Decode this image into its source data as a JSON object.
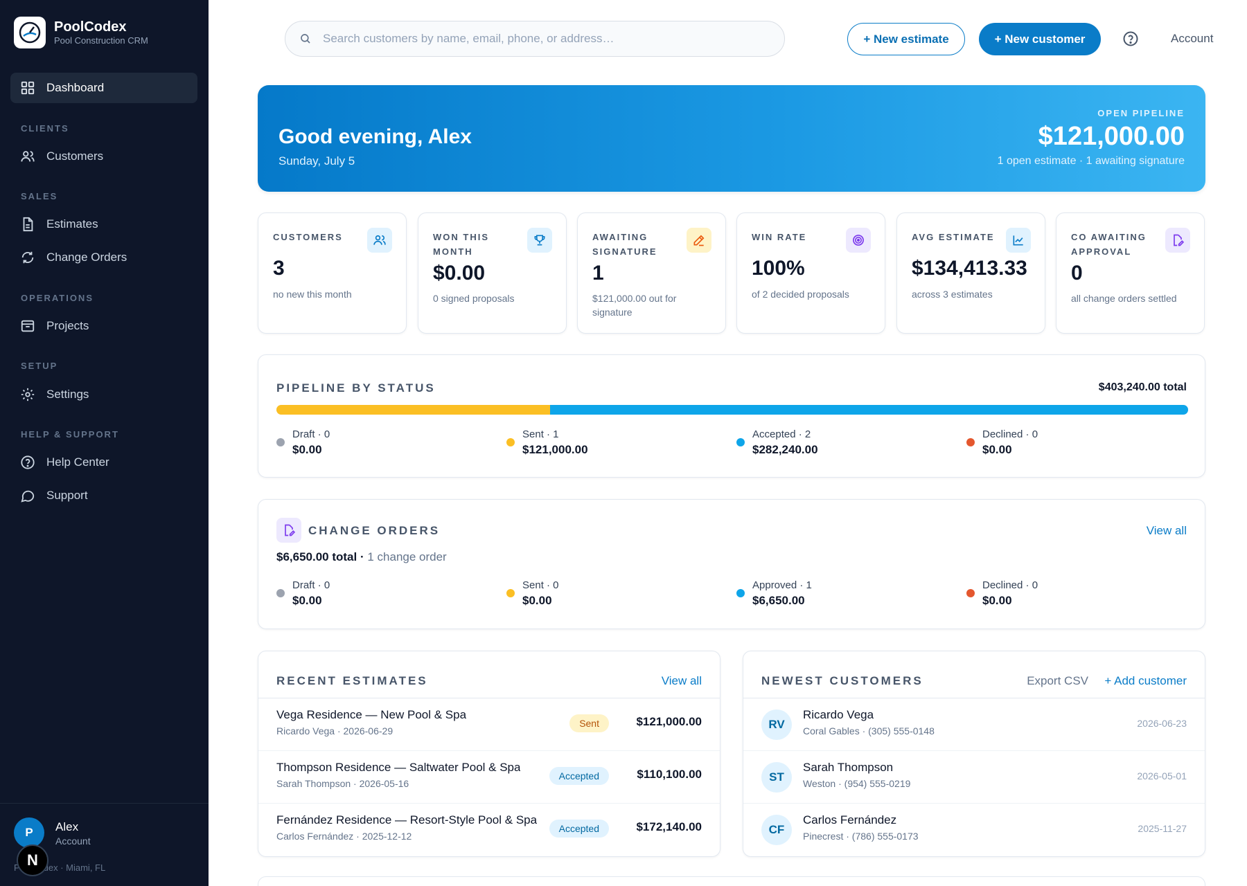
{
  "brand": {
    "name": "PoolCodex",
    "tagline": "Pool Construction CRM"
  },
  "nav": {
    "dashboard": "Dashboard",
    "sections": {
      "clients": "CLIENTS",
      "sales": "SALES",
      "operations": "OPERATIONS",
      "setup": "SETUP",
      "help": "HELP & SUPPORT"
    },
    "customers": "Customers",
    "estimates": "Estimates",
    "change_orders": "Change Orders",
    "projects": "Projects",
    "settings": "Settings",
    "help_center": "Help Center",
    "support": "Support"
  },
  "user": {
    "initial": "P",
    "name": "Alex",
    "role": "Account",
    "location": "PoolCodex · Miami, FL"
  },
  "dev_badge": "N",
  "topbar": {
    "search_placeholder": "Search customers by name, email, phone, or address…",
    "new_estimate": "+ New estimate",
    "new_customer": "+ New customer",
    "account": "Account"
  },
  "hero": {
    "greeting": "Good evening, Alex",
    "date": "Sunday, July 5",
    "label": "OPEN PIPELINE",
    "value": "$121,000.00",
    "sub": "1 open estimate · 1 awaiting signature"
  },
  "stats": [
    {
      "label": "CUSTOMERS",
      "value": "3",
      "note": "no new this month"
    },
    {
      "label": "WON THIS MONTH",
      "value": "$0.00",
      "note": "0 signed proposals"
    },
    {
      "label": "AWAITING SIGNATURE",
      "value": "1",
      "note": "$121,000.00 out for signature"
    },
    {
      "label": "WIN RATE",
      "value": "100%",
      "note": "of 2 decided proposals"
    },
    {
      "label": "AVG ESTIMATE",
      "value": "$134,413.33",
      "note": "across 3 estimates"
    },
    {
      "label": "CO AWAITING APPROVAL",
      "value": "0",
      "note": "all change orders settled"
    }
  ],
  "pipeline": {
    "title": "PIPELINE BY STATUS",
    "total": "$403,240.00 total",
    "bar_shares": {
      "sent": 0.3,
      "accepted": 0.7
    },
    "items": [
      {
        "label": "Draft · 0",
        "amount": "$0.00",
        "color": "#9ca3af"
      },
      {
        "label": "Sent · 1",
        "amount": "$121,000.00",
        "color": "#fbbf24"
      },
      {
        "label": "Accepted · 2",
        "amount": "$282,240.00",
        "color": "#0ea5e9"
      },
      {
        "label": "Declined · 0",
        "amount": "$0.00",
        "color": "#e4572e"
      }
    ]
  },
  "change_orders": {
    "title": "CHANGE ORDERS",
    "view_all": "View all",
    "total": "$6,650.00 total",
    "sep": " · ",
    "count": "1 change order",
    "items": [
      {
        "label": "Draft · 0",
        "amount": "$0.00",
        "color": "#9ca3af"
      },
      {
        "label": "Sent · 0",
        "amount": "$0.00",
        "color": "#fbbf24"
      },
      {
        "label": "Approved · 1",
        "amount": "$6,650.00",
        "color": "#0ea5e9"
      },
      {
        "label": "Declined · 0",
        "amount": "$0.00",
        "color": "#e4572e"
      }
    ]
  },
  "recent_estimates": {
    "title": "RECENT ESTIMATES",
    "view_all": "View all",
    "rows": [
      {
        "title": "Vega Residence — New Pool & Spa",
        "sub": "Ricardo Vega · 2026-06-29",
        "status": "Sent",
        "amount": "$121,000.00"
      },
      {
        "title": "Thompson Residence — Saltwater Pool & Spa",
        "sub": "Sarah Thompson · 2026-05-16",
        "status": "Accepted",
        "amount": "$110,100.00"
      },
      {
        "title": "Fernández Residence — Resort-Style Pool & Spa",
        "sub": "Carlos Fernández · 2025-12-12",
        "status": "Accepted",
        "amount": "$172,140.00"
      }
    ]
  },
  "newest_customers": {
    "title": "NEWEST CUSTOMERS",
    "export": "Export CSV",
    "add": "+ Add customer",
    "rows": [
      {
        "initials": "RV",
        "name": "Ricardo Vega",
        "sub": "Coral Gables · (305) 555-0148",
        "date": "2026-06-23"
      },
      {
        "initials": "ST",
        "name": "Sarah Thompson",
        "sub": "Weston · (954) 555-0219",
        "date": "2026-05-01"
      },
      {
        "initials": "CF",
        "name": "Carlos Fernández",
        "sub": "Pinecrest · (786) 555-0173",
        "date": "2025-11-27"
      }
    ]
  }
}
